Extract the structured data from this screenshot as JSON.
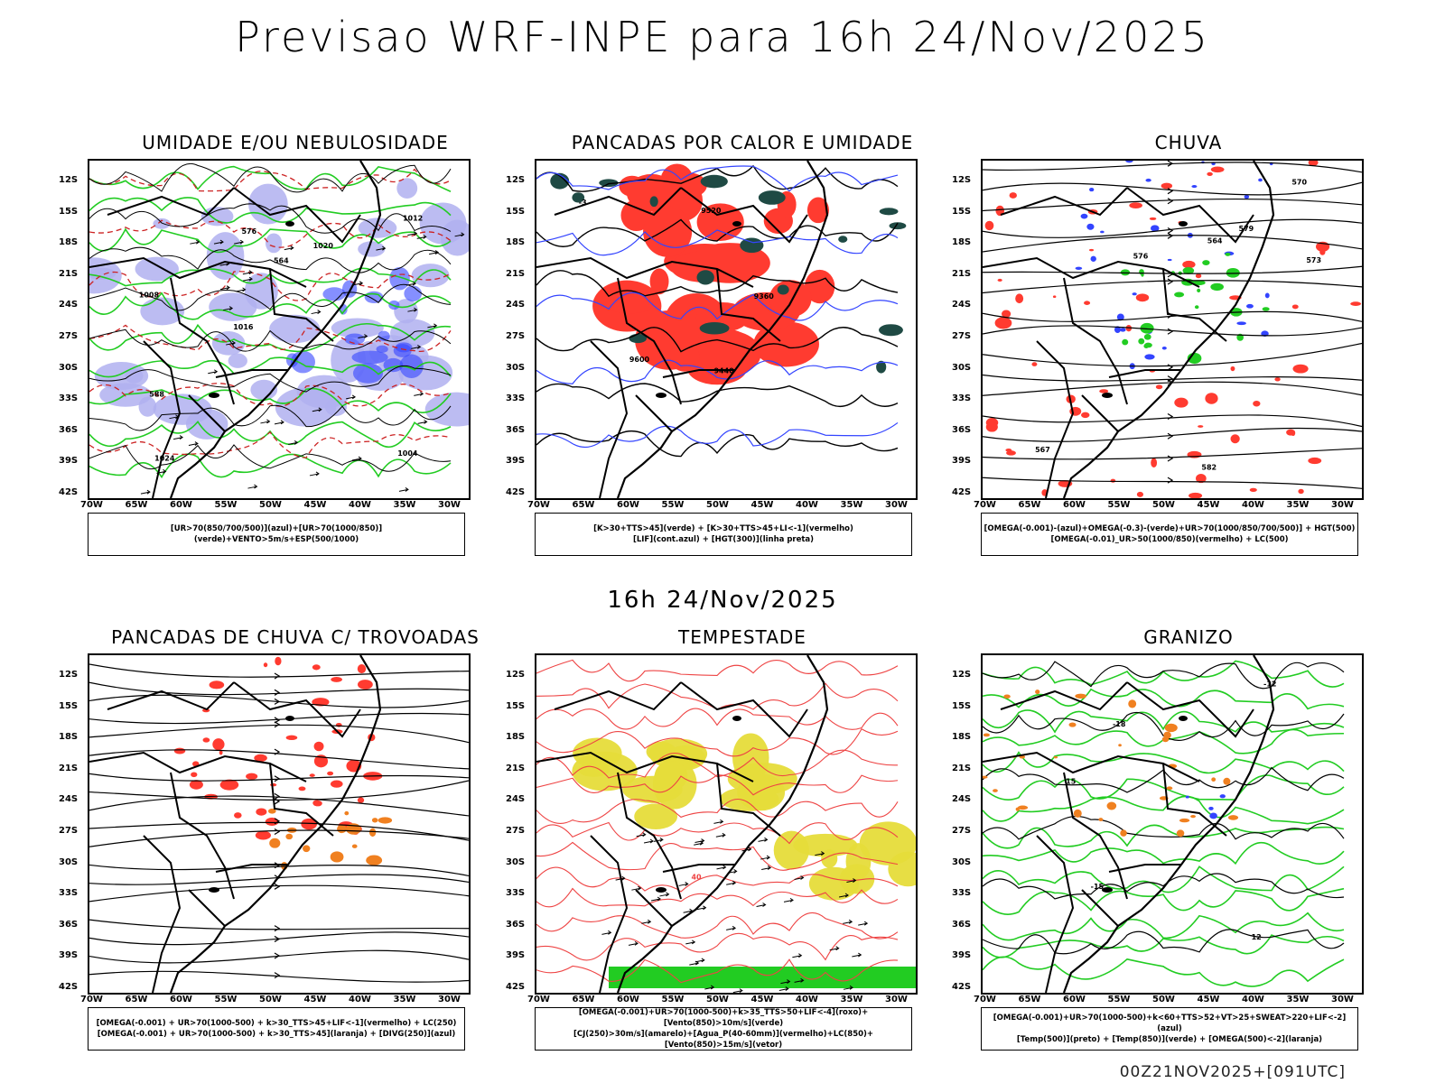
{
  "title": "Previsao WRF-INPE  para 16h 24/Nov/2025",
  "subtitle": "16h 24/Nov/2025",
  "footer": "00Z21NOV2025+[091UTC]",
  "lat_ticks": [
    "12S",
    "15S",
    "18S",
    "21S",
    "24S",
    "27S",
    "30S",
    "33S",
    "36S",
    "39S",
    "42S"
  ],
  "lon_ticks": [
    "70W",
    "65W",
    "60W",
    "55W",
    "50W",
    "45W",
    "40W",
    "35W",
    "30W"
  ],
  "panels": [
    {
      "title": "UMIDADE E/OU NEBULOSIDADE",
      "legend": [
        "[UR>70(850/700/500)](azul)+[UR>70(1000/850)](verde)+VENTO>5m/s+ESP(500/1000)"
      ],
      "labels": [
        "1004",
        "1008",
        "1012",
        "1016",
        "1020",
        "1024",
        "576",
        "564",
        "588"
      ]
    },
    {
      "title": "PANCADAS POR CALOR E UMIDADE",
      "legend": [
        "[K>30+TTS>45](verde) + [K>30+TTS>45+LI<-1](vermelho)",
        "[LIF](cont.azul) + [HGT(300)](linha preta)"
      ],
      "labels": [
        "9600",
        "9520",
        "9440",
        "9360",
        "-3"
      ]
    },
    {
      "title": "CHUVA",
      "legend": [
        "[OMEGA(-0.001)-(azul)+OMEGA(-0.3)-(verde)+UR>70(1000/850/700/500)] + HGT(500)",
        "[OMEGA(-0.01)_UR>50(1000/850)(vermelho) + LC(500)"
      ],
      "labels": [
        "582",
        "576",
        "573",
        "570",
        "567",
        "564",
        "579"
      ]
    },
    {
      "title": "PANCADAS DE CHUVA C/ TROVOADAS",
      "legend": [
        "[OMEGA(-0.001) + UR>70(1000-500) + k>30_TTS>45+LIF<-1](vermelho) + LC(250)",
        "[OMEGA(-0.001) + UR>70(1000-500) + k>30_TTS>45](laranja) + [DIVG(250)](azul)"
      ],
      "labels": []
    },
    {
      "title": "TEMPESTADE",
      "legend": [
        "[OMEGA(-0.001)+UR>70(1000-500)+k>35_TTS>50+LIF<-4](roxo)+[Vento(850)>10m/s](verde)",
        "[CJ(250)>30m/s](amarelo)+[Agua_P(40-60mm)](vermelho)+LC(850)+[Vento(850)>15m/s](vetor)"
      ],
      "labels": [
        "40"
      ]
    },
    {
      "title": "GRANIZO",
      "legend": [
        "[OMEGA(-0.001)+UR>70(1000-500)+k<60+TTS>52+VT>25+SWEAT>220+LIF<-2](azul)",
        "[Temp(500)](preto) + [Temp(850)](verde) + [OMEGA(500)<-2](laranja)"
      ],
      "labels": [
        "-12",
        "-15",
        "-18",
        "12",
        "15"
      ]
    }
  ],
  "colors": {
    "red": "#ff3b30",
    "green": "#22cc22",
    "blue": "#3344ff",
    "lavender": "#b0b0f0",
    "darkgreen": "#1f4a44",
    "yellow": "#e6dc3a",
    "orange": "#f08020"
  }
}
